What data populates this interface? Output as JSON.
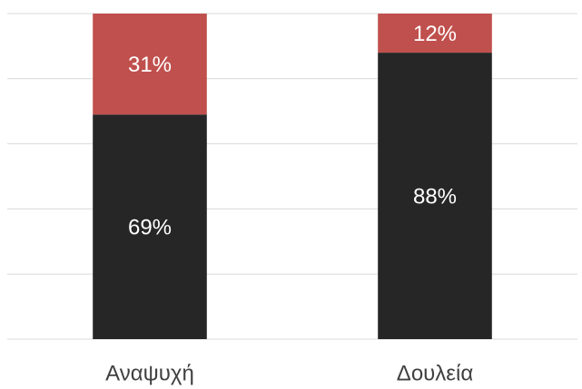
{
  "chart_data": {
    "type": "stacked_bar",
    "categories": [
      "Αναψυχή",
      "Δουλεία"
    ],
    "series": [
      {
        "name": null,
        "color": "#262626",
        "values": [
          69,
          88
        ],
        "value_labels": [
          "69%",
          "88%"
        ]
      },
      {
        "name": null,
        "color": "#c0504d",
        "values": [
          31,
          12
        ],
        "value_labels": [
          "31%",
          "12%"
        ]
      }
    ],
    "ylim": [
      0,
      100
    ],
    "yticks": [
      0,
      20,
      40,
      60,
      80,
      100
    ],
    "grid": true
  }
}
